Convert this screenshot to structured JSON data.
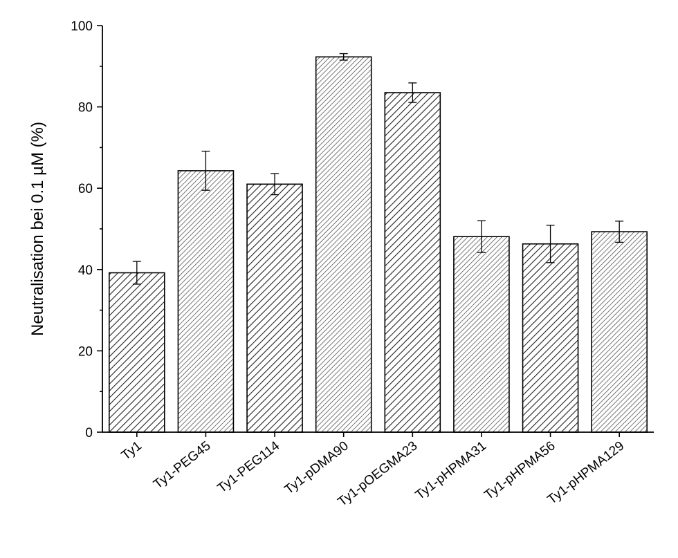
{
  "chart_data": {
    "type": "bar",
    "title": "",
    "xlabel": "",
    "ylabel": "Neutralisation bei 0.1 µM (%)",
    "ylim": [
      0,
      100
    ],
    "yticks": [
      0,
      20,
      40,
      60,
      80,
      100
    ],
    "categories": [
      "Ty1",
      "Ty1-PEG45",
      "Ty1-PEG114",
      "Ty1-pDMA90",
      "Ty1-pOEGMA23",
      "Ty1-pHPMA31",
      "Ty1-pHPMA56",
      "Ty1-pHPMA129"
    ],
    "values": [
      39.2,
      64.3,
      61.0,
      92.3,
      83.5,
      48.1,
      46.3,
      49.3
    ],
    "errors": [
      2.8,
      4.8,
      2.6,
      0.8,
      2.4,
      3.9,
      4.6,
      2.6
    ],
    "grid": false,
    "legend": "none",
    "bar_fill": "hatched",
    "bar_colors": [
      "#ffffff",
      "#ffffff"
    ],
    "hatch_color": "#2a2a2a",
    "axis_color": "#000000"
  }
}
